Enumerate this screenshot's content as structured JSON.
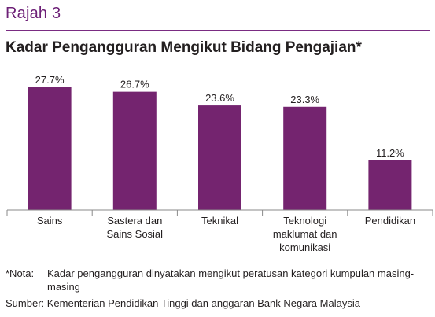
{
  "figure_label": "Rajah 3",
  "accent_color": "#6d2077",
  "bar_color": "#74246f",
  "note": {
    "prefix": "*Nota:",
    "text": "Kadar pengangguran dinyatakan mengikut peratusan kategori kumpulan masing-masing"
  },
  "source": "Sumber: Kementerian Pendidikan Tinggi dan anggaran Bank Negara Malaysia",
  "chart_data": {
    "type": "bar",
    "title": "Kadar Pengangguran Mengikut Bidang Pengajian*",
    "xlabel": "",
    "ylabel": "",
    "categories": [
      [
        "Sains"
      ],
      [
        "Sastera dan",
        "Sains Sosial"
      ],
      [
        "Teknikal"
      ],
      [
        "Teknologi",
        "maklumat dan",
        "komunikasi"
      ],
      [
        "Pendidikan"
      ]
    ],
    "values": [
      27.7,
      26.7,
      23.6,
      23.3,
      11.2
    ],
    "value_labels": [
      "27.7%",
      "26.7%",
      "23.6%",
      "23.3%",
      "11.2%"
    ],
    "ylim": [
      0,
      27.7
    ],
    "grid": false,
    "legend": "none"
  }
}
